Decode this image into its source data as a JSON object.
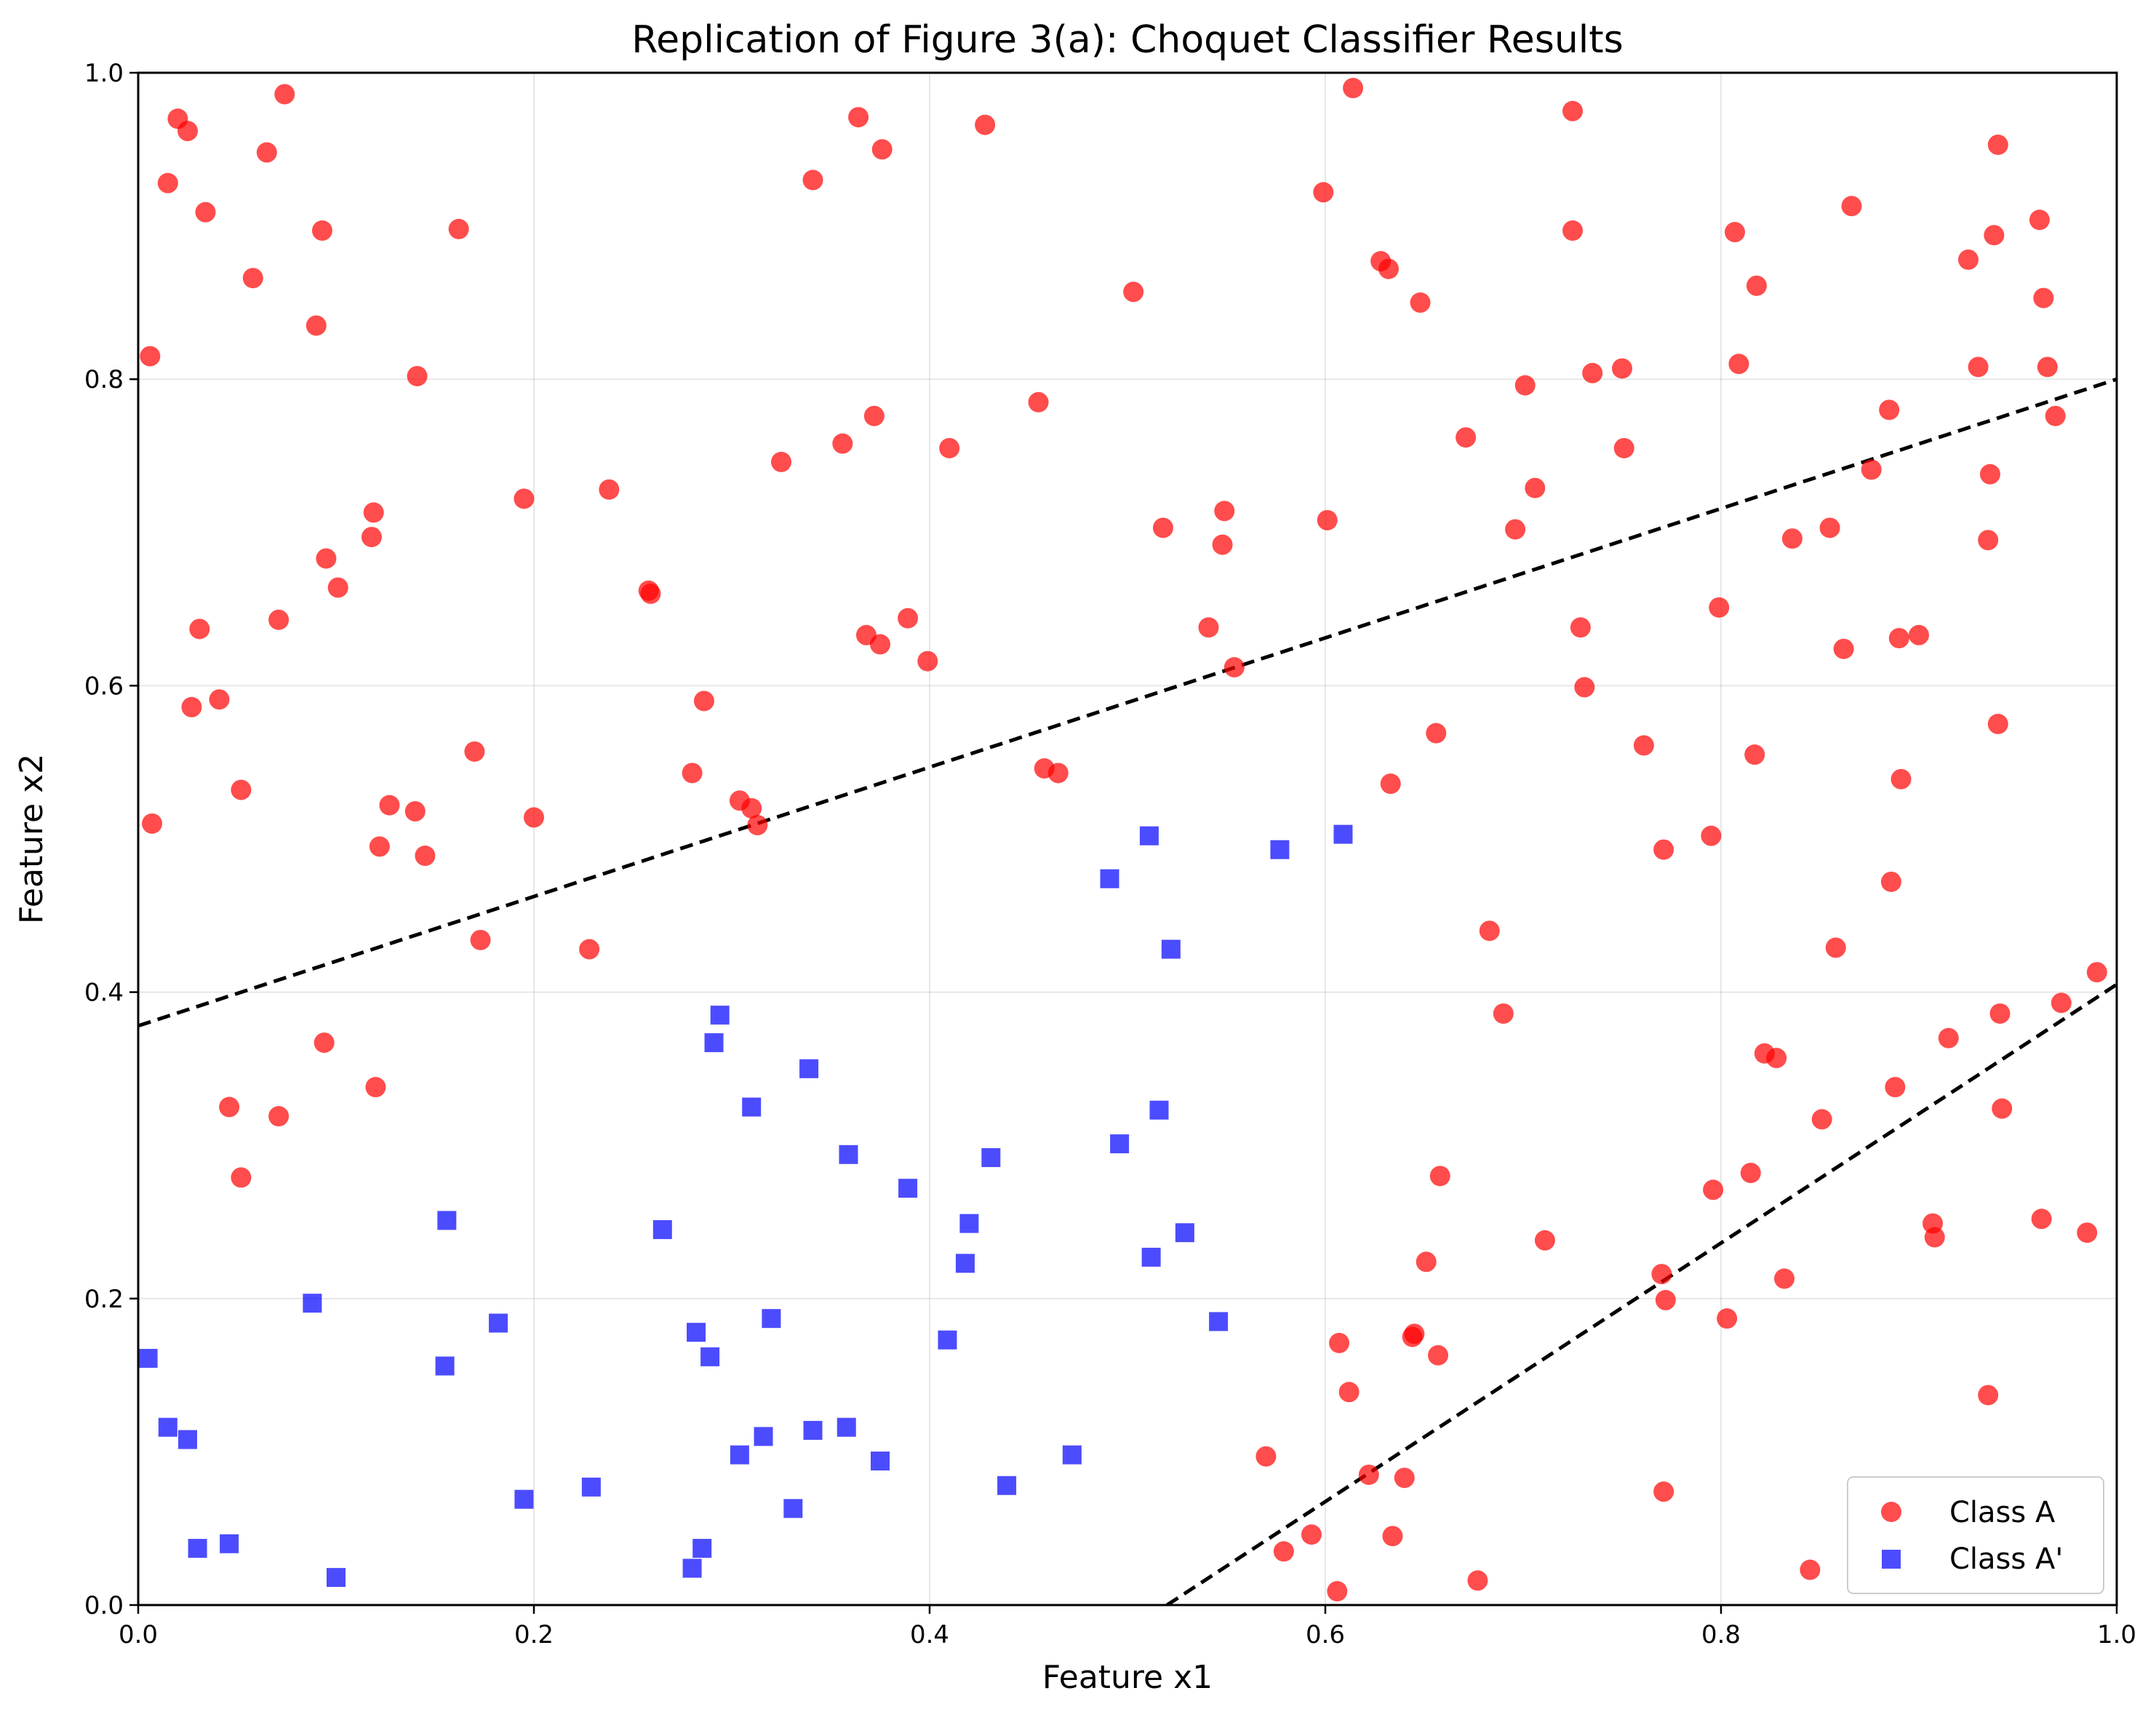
{
  "chart_data": {
    "type": "scatter",
    "title": "Replication of Figure 3(a): Choquet Classifier Results",
    "xlabel": "Feature x1",
    "ylabel": "Feature x2",
    "xlim": [
      0.0,
      1.0
    ],
    "ylim": [
      0.0,
      1.0
    ],
    "xticks": [
      "0.0",
      "0.2",
      "0.4",
      "0.6",
      "0.8",
      "1.0"
    ],
    "yticks": [
      "0.0",
      "0.2",
      "0.4",
      "0.6",
      "0.8",
      "1.0"
    ],
    "grid": true,
    "legend_position": "lower-right",
    "series": [
      {
        "name": "Class A",
        "marker": "circle",
        "color": "#ff0000",
        "points": [
          [
            0.006,
            0.815
          ],
          [
            0.007,
            0.51
          ],
          [
            0.015,
            0.928
          ],
          [
            0.02,
            0.97
          ],
          [
            0.025,
            0.962
          ],
          [
            0.027,
            0.586
          ],
          [
            0.031,
            0.637
          ],
          [
            0.034,
            0.909
          ],
          [
            0.041,
            0.591
          ],
          [
            0.046,
            0.325
          ],
          [
            0.052,
            0.532
          ],
          [
            0.052,
            0.279
          ],
          [
            0.058,
            0.866
          ],
          [
            0.065,
            0.948
          ],
          [
            0.071,
            0.643
          ],
          [
            0.071,
            0.319
          ],
          [
            0.074,
            0.986
          ],
          [
            0.09,
            0.835
          ],
          [
            0.093,
            0.897
          ],
          [
            0.094,
            0.367
          ],
          [
            0.095,
            0.683
          ],
          [
            0.101,
            0.664
          ],
          [
            0.118,
            0.697
          ],
          [
            0.119,
            0.713
          ],
          [
            0.12,
            0.338
          ],
          [
            0.122,
            0.495
          ],
          [
            0.127,
            0.522
          ],
          [
            0.14,
            0.518
          ],
          [
            0.141,
            0.802
          ],
          [
            0.145,
            0.489
          ],
          [
            0.162,
            0.898
          ],
          [
            0.17,
            0.557
          ],
          [
            0.173,
            0.434
          ],
          [
            0.195,
            0.722
          ],
          [
            0.2,
            0.514
          ],
          [
            0.228,
            0.428
          ],
          [
            0.238,
            0.728
          ],
          [
            0.258,
            0.662
          ],
          [
            0.259,
            0.66
          ],
          [
            0.28,
            0.543
          ],
          [
            0.286,
            0.59
          ],
          [
            0.304,
            0.525
          ],
          [
            0.31,
            0.52
          ],
          [
            0.313,
            0.509
          ],
          [
            0.325,
            0.746
          ],
          [
            0.341,
            0.93
          ],
          [
            0.356,
            0.758
          ],
          [
            0.364,
            0.971
          ],
          [
            0.368,
            0.633
          ],
          [
            0.372,
            0.776
          ],
          [
            0.375,
            0.627
          ],
          [
            0.376,
            0.95
          ],
          [
            0.389,
            0.644
          ],
          [
            0.399,
            0.616
          ],
          [
            0.41,
            0.755
          ],
          [
            0.428,
            0.966
          ],
          [
            0.455,
            0.785
          ],
          [
            0.458,
            0.546
          ],
          [
            0.465,
            0.543
          ],
          [
            0.503,
            0.857
          ],
          [
            0.518,
            0.703
          ],
          [
            0.541,
            0.638
          ],
          [
            0.548,
            0.692
          ],
          [
            0.549,
            0.714
          ],
          [
            0.554,
            0.612
          ],
          [
            0.57,
            0.097
          ],
          [
            0.579,
            0.035
          ],
          [
            0.593,
            0.046
          ],
          [
            0.599,
            0.922
          ],
          [
            0.601,
            0.708
          ],
          [
            0.606,
            0.009
          ],
          [
            0.607,
            0.171
          ],
          [
            0.612,
            0.139
          ],
          [
            0.614,
            0.99
          ],
          [
            0.622,
            0.085
          ],
          [
            0.628,
            0.877
          ],
          [
            0.632,
            0.872
          ],
          [
            0.633,
            0.536
          ],
          [
            0.634,
            0.045
          ],
          [
            0.64,
            0.083
          ],
          [
            0.644,
            0.175
          ],
          [
            0.645,
            0.177
          ],
          [
            0.648,
            0.85
          ],
          [
            0.651,
            0.224
          ],
          [
            0.656,
            0.569
          ],
          [
            0.657,
            0.163
          ],
          [
            0.658,
            0.28
          ],
          [
            0.671,
            0.762
          ],
          [
            0.677,
            0.016
          ],
          [
            0.683,
            0.44
          ],
          [
            0.69,
            0.386
          ],
          [
            0.696,
            0.702
          ],
          [
            0.701,
            0.796
          ],
          [
            0.706,
            0.729
          ],
          [
            0.711,
            0.238
          ],
          [
            0.725,
            0.975
          ],
          [
            0.725,
            0.897
          ],
          [
            0.729,
            0.638
          ],
          [
            0.731,
            0.599
          ],
          [
            0.735,
            0.804
          ],
          [
            0.75,
            0.807
          ],
          [
            0.751,
            0.755
          ],
          [
            0.761,
            0.561
          ],
          [
            0.77,
            0.216
          ],
          [
            0.771,
            0.493
          ],
          [
            0.771,
            0.074
          ],
          [
            0.772,
            0.199
          ],
          [
            0.795,
            0.502
          ],
          [
            0.796,
            0.271
          ],
          [
            0.799,
            0.651
          ],
          [
            0.803,
            0.187
          ],
          [
            0.807,
            0.896
          ],
          [
            0.809,
            0.81
          ],
          [
            0.815,
            0.282
          ],
          [
            0.817,
            0.555
          ],
          [
            0.818,
            0.861
          ],
          [
            0.822,
            0.36
          ],
          [
            0.828,
            0.357
          ],
          [
            0.832,
            0.213
          ],
          [
            0.836,
            0.696
          ],
          [
            0.845,
            0.023
          ],
          [
            0.851,
            0.317
          ],
          [
            0.855,
            0.703
          ],
          [
            0.858,
            0.429
          ],
          [
            0.862,
            0.624
          ],
          [
            0.866,
            0.913
          ],
          [
            0.876,
            0.741
          ],
          [
            0.885,
            0.78
          ],
          [
            0.886,
            0.472
          ],
          [
            0.888,
            0.338
          ],
          [
            0.89,
            0.631
          ],
          [
            0.891,
            0.539
          ],
          [
            0.9,
            0.633
          ],
          [
            0.907,
            0.249
          ],
          [
            0.908,
            0.24
          ],
          [
            0.915,
            0.37
          ],
          [
            0.925,
            0.878
          ],
          [
            0.93,
            0.808
          ],
          [
            0.935,
            0.695
          ],
          [
            0.935,
            0.137
          ],
          [
            0.936,
            0.738
          ],
          [
            0.938,
            0.894
          ],
          [
            0.94,
            0.953
          ],
          [
            0.94,
            0.575
          ],
          [
            0.941,
            0.386
          ],
          [
            0.942,
            0.324
          ],
          [
            0.961,
            0.904
          ],
          [
            0.962,
            0.252
          ],
          [
            0.963,
            0.853
          ],
          [
            0.965,
            0.808
          ],
          [
            0.969,
            0.776
          ],
          [
            0.972,
            0.393
          ],
          [
            0.985,
            0.243
          ],
          [
            0.99,
            0.413
          ]
        ]
      },
      {
        "name": "Class A'",
        "marker": "square",
        "color": "#0000ff",
        "points": [
          [
            0.005,
            0.161
          ],
          [
            0.015,
            0.116
          ],
          [
            0.025,
            0.108
          ],
          [
            0.03,
            0.037
          ],
          [
            0.046,
            0.04
          ],
          [
            0.088,
            0.197
          ],
          [
            0.1,
            0.018
          ],
          [
            0.155,
            0.156
          ],
          [
            0.156,
            0.251
          ],
          [
            0.182,
            0.184
          ],
          [
            0.195,
            0.069
          ],
          [
            0.229,
            0.077
          ],
          [
            0.265,
            0.245
          ],
          [
            0.28,
            0.024
          ],
          [
            0.282,
            0.178
          ],
          [
            0.285,
            0.037
          ],
          [
            0.289,
            0.162
          ],
          [
            0.291,
            0.367
          ],
          [
            0.294,
            0.385
          ],
          [
            0.304,
            0.098
          ],
          [
            0.31,
            0.325
          ],
          [
            0.316,
            0.11
          ],
          [
            0.32,
            0.187
          ],
          [
            0.331,
            0.063
          ],
          [
            0.339,
            0.35
          ],
          [
            0.341,
            0.114
          ],
          [
            0.358,
            0.116
          ],
          [
            0.359,
            0.294
          ],
          [
            0.375,
            0.094
          ],
          [
            0.389,
            0.272
          ],
          [
            0.409,
            0.173
          ],
          [
            0.418,
            0.223
          ],
          [
            0.42,
            0.249
          ],
          [
            0.431,
            0.292
          ],
          [
            0.439,
            0.078
          ],
          [
            0.472,
            0.098
          ],
          [
            0.491,
            0.474
          ],
          [
            0.496,
            0.301
          ],
          [
            0.511,
            0.502
          ],
          [
            0.512,
            0.227
          ],
          [
            0.516,
            0.323
          ],
          [
            0.522,
            0.428
          ],
          [
            0.529,
            0.243
          ],
          [
            0.546,
            0.185
          ],
          [
            0.577,
            0.493
          ],
          [
            0.609,
            0.503
          ]
        ]
      }
    ],
    "decision_boundaries": [
      {
        "style": "dashed",
        "color": "#000000",
        "x": [
          0.0,
          1.0
        ],
        "y": [
          0.378,
          0.8
        ]
      },
      {
        "style": "dashed",
        "color": "#000000",
        "x": [
          0.52,
          1.0
        ],
        "y": [
          0.0,
          0.405
        ]
      }
    ]
  }
}
